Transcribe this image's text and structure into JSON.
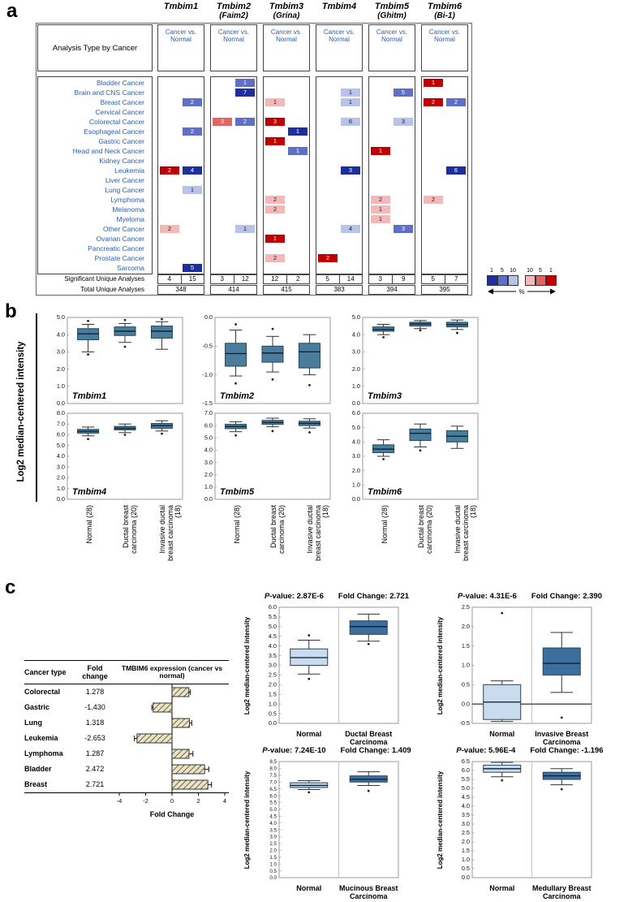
{
  "panels": {
    "a": "a",
    "b": "b",
    "c": "c"
  },
  "panel_b": {
    "ylabel": "Log2 median-centered intensity"
  },
  "panel_c": {
    "table": {
      "col1": "Cancer type",
      "col2": "Fold change"
    }
  },
  "chart_data": [
    {
      "id": "oncomine_summary",
      "type": "heatmap",
      "row_header": "Analysis Type by Cancer",
      "subheader": "Cancer vs. Normal",
      "genes": [
        {
          "name": "Tmbim1",
          "alias": ""
        },
        {
          "name": "Tmbim2",
          "alias": "(Faim2)"
        },
        {
          "name": "Tmbim3",
          "alias": "(Grina)"
        },
        {
          "name": "Tmbim4",
          "alias": ""
        },
        {
          "name": "Tmbim5",
          "alias": "(Ghitm)"
        },
        {
          "name": "Tmbim6",
          "alias": "(Bi-1)"
        }
      ],
      "rows": [
        "Bladder Cancer",
        "Brain and CNS Cancer",
        "Breast Cancer",
        "Cervical Cancer",
        "Colorectal Cancer",
        "Esophageal Cancer",
        "Gastric Cancer",
        "Head and Neck Cancer",
        "Kidney Cancer",
        "Leukemia",
        "Liver Cancer",
        "Lung Cancer",
        "Lymphoma",
        "Melanoma",
        "Myeloma",
        "Other Cancer",
        "Ovarian Cancer",
        "Pancreatic Cancer",
        "Prostate Cancer",
        "Sarcoma"
      ],
      "shades": {
        "red1": "#c00000",
        "red5": "#e06666",
        "red10": "#f4b8b8",
        "blue10": "#b9c2e8",
        "blue5": "#5f6fc4",
        "blue1": "#1e2f9c"
      },
      "cells": [
        {
          "row": 0,
          "gene": 1,
          "side": "R",
          "value": 1,
          "shade": "blue5"
        },
        {
          "row": 0,
          "gene": 5,
          "side": "L",
          "value": 1,
          "shade": "red1"
        },
        {
          "row": 1,
          "gene": 1,
          "side": "R",
          "value": 7,
          "shade": "blue1"
        },
        {
          "row": 1,
          "gene": 3,
          "side": "R",
          "value": 1,
          "shade": "blue10"
        },
        {
          "row": 1,
          "gene": 4,
          "side": "R",
          "value": 5,
          "shade": "blue5"
        },
        {
          "row": 2,
          "gene": 0,
          "side": "R",
          "value": 2,
          "shade": "blue5"
        },
        {
          "row": 2,
          "gene": 2,
          "side": "L",
          "value": 1,
          "shade": "red10"
        },
        {
          "row": 2,
          "gene": 3,
          "side": "R",
          "value": 1,
          "shade": "blue10"
        },
        {
          "row": 2,
          "gene": 5,
          "side": "L",
          "value": 2,
          "shade": "red1"
        },
        {
          "row": 2,
          "gene": 5,
          "side": "R",
          "value": 2,
          "shade": "blue5"
        },
        {
          "row": 4,
          "gene": 1,
          "side": "L",
          "value": 3,
          "shade": "red5"
        },
        {
          "row": 4,
          "gene": 1,
          "side": "R",
          "value": 2,
          "shade": "blue5"
        },
        {
          "row": 4,
          "gene": 2,
          "side": "L",
          "value": 3,
          "shade": "red1"
        },
        {
          "row": 4,
          "gene": 3,
          "side": "R",
          "value": 6,
          "shade": "blue10"
        },
        {
          "row": 4,
          "gene": 4,
          "side": "R",
          "value": 3,
          "shade": "blue10"
        },
        {
          "row": 5,
          "gene": 0,
          "side": "R",
          "value": 2,
          "shade": "blue5"
        },
        {
          "row": 5,
          "gene": 2,
          "side": "R",
          "value": 1,
          "shade": "blue1"
        },
        {
          "row": 6,
          "gene": 2,
          "side": "L",
          "value": 1,
          "shade": "red1"
        },
        {
          "row": 7,
          "gene": 2,
          "side": "R",
          "value": 1,
          "shade": "blue5"
        },
        {
          "row": 7,
          "gene": 4,
          "side": "L",
          "value": 1,
          "shade": "red1"
        },
        {
          "row": 9,
          "gene": 0,
          "side": "L",
          "value": 2,
          "shade": "red1"
        },
        {
          "row": 9,
          "gene": 0,
          "side": "R",
          "value": 4,
          "shade": "blue1"
        },
        {
          "row": 9,
          "gene": 3,
          "side": "R",
          "value": 3,
          "shade": "blue1"
        },
        {
          "row": 9,
          "gene": 5,
          "side": "R",
          "value": 6,
          "shade": "blue1"
        },
        {
          "row": 11,
          "gene": 0,
          "side": "R",
          "value": 1,
          "shade": "blue10"
        },
        {
          "row": 12,
          "gene": 2,
          "side": "L",
          "value": 2,
          "shade": "red10"
        },
        {
          "row": 12,
          "gene": 4,
          "side": "L",
          "value": 2,
          "shade": "red10"
        },
        {
          "row": 12,
          "gene": 5,
          "side": "L",
          "value": 2,
          "shade": "red10"
        },
        {
          "row": 13,
          "gene": 2,
          "side": "L",
          "value": 2,
          "shade": "red10"
        },
        {
          "row": 13,
          "gene": 4,
          "side": "L",
          "value": 1,
          "shade": "red10"
        },
        {
          "row": 14,
          "gene": 4,
          "side": "L",
          "value": 1,
          "shade": "red10"
        },
        {
          "row": 15,
          "gene": 0,
          "side": "L",
          "value": 2,
          "shade": "red10"
        },
        {
          "row": 15,
          "gene": 1,
          "side": "R",
          "value": 1,
          "shade": "blue10"
        },
        {
          "row": 15,
          "gene": 3,
          "side": "R",
          "value": 4,
          "shade": "blue10"
        },
        {
          "row": 15,
          "gene": 4,
          "side": "R",
          "value": 3,
          "shade": "blue5"
        },
        {
          "row": 16,
          "gene": 2,
          "side": "L",
          "value": 1,
          "shade": "red1"
        },
        {
          "row": 18,
          "gene": 2,
          "side": "L",
          "value": 2,
          "shade": "red10"
        },
        {
          "row": 18,
          "gene": 3,
          "side": "L",
          "value": 2,
          "shade": "red1"
        },
        {
          "row": 19,
          "gene": 0,
          "side": "R",
          "value": 5,
          "shade": "blue1"
        }
      ],
      "significant_label": "Significant Unique Analyses",
      "significant": [
        [
          4,
          15
        ],
        [
          3,
          12
        ],
        [
          12,
          2
        ],
        [
          5,
          14
        ],
        [
          3,
          9
        ],
        [
          5,
          7
        ]
      ],
      "total_label": "Total Unique Analyses",
      "totals": [
        348,
        414,
        415,
        383,
        394,
        395
      ],
      "legend": {
        "blue_labels": [
          "1",
          "5",
          "10"
        ],
        "red_labels": [
          "10",
          "5",
          "1"
        ],
        "blue_shades": [
          "blue1",
          "blue5",
          "blue10"
        ],
        "red_shades": [
          "red10",
          "red5",
          "red1"
        ],
        "pct": "%"
      }
    },
    {
      "id": "box_tmbim1",
      "type": "box",
      "title": "Tmbim1",
      "ylim": [
        0,
        5
      ],
      "ytick_step": 1,
      "ydecimals": 1,
      "box_color": "#4a7c9b",
      "categories": [
        "Normal (28)",
        "Ductal breast carcinoma (20)",
        "Invasive ductal breast carcinoma (18)"
      ],
      "boxes": [
        {
          "lo": 3.0,
          "q1": 3.7,
          "med": 4.05,
          "q3": 4.35,
          "hi": 4.6,
          "outliers": [
            4.8,
            2.85
          ]
        },
        {
          "lo": 3.55,
          "q1": 3.95,
          "med": 4.2,
          "q3": 4.45,
          "hi": 4.65,
          "outliers": [
            4.85,
            3.3
          ]
        },
        {
          "lo": 3.15,
          "q1": 3.8,
          "med": 4.2,
          "q3": 4.5,
          "hi": 4.75,
          "outliers": [
            4.9
          ]
        }
      ]
    },
    {
      "id": "box_tmbim2",
      "type": "box",
      "title": "Tmbim2",
      "ylim": [
        -1.5,
        0
      ],
      "ytick_step": 0.5,
      "ydecimals": 1,
      "box_color": "#4a7c9b",
      "categories": [
        "Normal (28)",
        "Ductal breast carcinoma (20)",
        "Invasive ductal breast carcinoma (18)"
      ],
      "boxes": [
        {
          "lo": -1.02,
          "q1": -0.85,
          "med": -0.63,
          "q3": -0.45,
          "hi": -0.22,
          "outliers": [
            -0.12,
            -1.15
          ]
        },
        {
          "lo": -0.95,
          "q1": -0.78,
          "med": -0.62,
          "q3": -0.5,
          "hi": -0.33,
          "outliers": [
            -1.08,
            -0.2
          ]
        },
        {
          "lo": -1.0,
          "q1": -0.88,
          "med": -0.6,
          "q3": -0.45,
          "hi": -0.3,
          "outliers": [
            -1.18
          ]
        }
      ]
    },
    {
      "id": "box_tmbim3",
      "type": "box",
      "title": "Tmbim3",
      "ylim": [
        0,
        5
      ],
      "ytick_step": 1,
      "ydecimals": 1,
      "box_color": "#4a7c9b",
      "categories": [
        "Normal (28)",
        "Ductal breast carcinoma (20)",
        "Invasive ductal breast carcinoma (18)"
      ],
      "boxes": [
        {
          "lo": 4.0,
          "q1": 4.2,
          "med": 4.3,
          "q3": 4.45,
          "hi": 4.6,
          "outliers": [
            3.85
          ]
        },
        {
          "lo": 4.35,
          "q1": 4.5,
          "med": 4.62,
          "q3": 4.72,
          "hi": 4.82,
          "outliers": [
            4.25
          ]
        },
        {
          "lo": 4.3,
          "q1": 4.45,
          "med": 4.58,
          "q3": 4.72,
          "hi": 4.85,
          "outliers": [
            4.1
          ]
        }
      ]
    },
    {
      "id": "box_tmbim4",
      "type": "box",
      "title": "Tmbim4",
      "ylim": [
        0,
        8
      ],
      "ytick_step": 1,
      "ydecimals": 1,
      "box_color": "#4a7c9b",
      "categories": [
        "Normal (28)",
        "Ductal breast carcinoma (20)",
        "Invasive ductal breast carcinoma (18)"
      ],
      "boxes": [
        {
          "lo": 5.9,
          "q1": 6.15,
          "med": 6.32,
          "q3": 6.5,
          "hi": 6.72,
          "outliers": [
            5.6
          ]
        },
        {
          "lo": 6.2,
          "q1": 6.45,
          "med": 6.6,
          "q3": 6.78,
          "hi": 7.0,
          "outliers": [
            6.0
          ]
        },
        {
          "lo": 6.35,
          "q1": 6.6,
          "med": 6.85,
          "q3": 7.05,
          "hi": 7.3,
          "outliers": [
            6.1
          ]
        }
      ]
    },
    {
      "id": "box_tmbim5",
      "type": "box",
      "title": "Tmbim5",
      "ylim": [
        0,
        7
      ],
      "ytick_step": 1,
      "ydecimals": 1,
      "box_color": "#4a7c9b",
      "categories": [
        "Normal (28)",
        "Ductal breast carcinoma (20)",
        "Invasive ductal breast carcinoma (18)"
      ],
      "boxes": [
        {
          "lo": 5.5,
          "q1": 5.75,
          "med": 5.92,
          "q3": 6.1,
          "hi": 6.3,
          "outliers": [
            5.2
          ]
        },
        {
          "lo": 5.9,
          "q1": 6.1,
          "med": 6.25,
          "q3": 6.42,
          "hi": 6.6,
          "outliers": [
            5.55
          ]
        },
        {
          "lo": 5.8,
          "q1": 6.0,
          "med": 6.18,
          "q3": 6.35,
          "hi": 6.55,
          "outliers": [
            5.45
          ]
        }
      ]
    },
    {
      "id": "box_tmbim6",
      "type": "box",
      "title": "Tmbim6",
      "ylim": [
        0,
        6
      ],
      "ytick_step": 1,
      "ydecimals": 1,
      "box_color": "#4a7c9b",
      "categories": [
        "Normal (28)",
        "Ductal breast carcinoma (20)",
        "Invasive ductal breast carcinoma (18)"
      ],
      "boxes": [
        {
          "lo": 3.0,
          "q1": 3.25,
          "med": 3.5,
          "q3": 3.8,
          "hi": 4.15,
          "outliers": [
            2.8
          ]
        },
        {
          "lo": 3.65,
          "q1": 4.1,
          "med": 4.6,
          "q3": 4.9,
          "hi": 5.25,
          "outliers": [
            3.4
          ]
        },
        {
          "lo": 3.55,
          "q1": 4.0,
          "med": 4.4,
          "q3": 4.78,
          "hi": 5.1,
          "outliers": []
        }
      ]
    },
    {
      "id": "tmbim6_fold",
      "type": "bar",
      "orientation": "horizontal",
      "title": "TMBIM6 expression (cancer vs normal)",
      "categories": [
        "Colorectal",
        "Gastric",
        "Lung",
        "Leukemia",
        "Lymphoma",
        "Bladder",
        "Breast"
      ],
      "values": [
        1.278,
        -1.43,
        1.318,
        -2.653,
        1.287,
        2.472,
        2.721
      ],
      "errors": [
        0.12,
        0.1,
        0.18,
        0.2,
        0.3,
        0.32,
        0.28
      ],
      "xlabel": "Fold Change",
      "xlim": [
        -4,
        4
      ],
      "xticks": [
        -4,
        -2,
        0,
        2,
        4
      ]
    },
    {
      "id": "cmp_ductal",
      "type": "box",
      "p_prefix": "P",
      "p_rest": "-value:",
      "pvalue": "2.87E-6",
      "fold_label": "Fold Change:",
      "fold": "2.721",
      "ylabel": "Log2 median-centered intensity",
      "ylim": [
        0,
        6
      ],
      "ytick_step": 0.5,
      "ydecimals": 1,
      "colors": [
        "#c9dcef",
        "#3c6f9e"
      ],
      "categories": [
        "Normal",
        "Ductal Breast Carcinoma"
      ],
      "boxes": [
        {
          "lo": 2.55,
          "q1": 3.0,
          "med": 3.4,
          "q3": 3.85,
          "hi": 4.3,
          "outliers": [
            2.3,
            4.55
          ]
        },
        {
          "lo": 4.25,
          "q1": 4.6,
          "med": 5.0,
          "q3": 5.3,
          "hi": 5.65,
          "outliers": [
            4.1
          ]
        }
      ]
    },
    {
      "id": "cmp_invasive",
      "type": "box",
      "p_prefix": "P",
      "p_rest": "-value:",
      "pvalue": "4.31E-6",
      "fold_label": "Fold Change:",
      "fold": "2.390",
      "ylabel": "Log2 median-centered intensity",
      "ylim": [
        -0.5,
        2.5
      ],
      "ytick_step": 0.5,
      "ydecimals": 1,
      "zeroline": true,
      "colors": [
        "#c9dcef",
        "#3c6f9e"
      ],
      "categories": [
        "Normal",
        "Invasive Breast Carcinoma"
      ],
      "boxes": [
        {
          "lo": -0.45,
          "q1": -0.4,
          "med": 0.05,
          "q3": 0.5,
          "hi": 0.6,
          "outliers": [
            2.35
          ]
        },
        {
          "lo": 0.3,
          "q1": 0.75,
          "med": 1.05,
          "q3": 1.45,
          "hi": 1.85,
          "outliers": [
            -0.35
          ]
        }
      ]
    },
    {
      "id": "cmp_mucinous",
      "type": "box",
      "p_prefix": "P",
      "p_rest": "-value:",
      "pvalue": "7.24E-10",
      "fold_label": "Fold Change:",
      "fold": "1.409",
      "ylabel": "Log2 median-centered intensity",
      "ylim": [
        0,
        8.5
      ],
      "ytick_step": 0.5,
      "ydecimals": 1,
      "colors": [
        "#c9dcef",
        "#3c6f9e"
      ],
      "categories": [
        "Normal",
        "Mucinous Breast Carcinoma"
      ],
      "boxes": [
        {
          "lo": 6.45,
          "q1": 6.6,
          "med": 6.75,
          "q3": 6.95,
          "hi": 7.1,
          "outliers": [
            6.25
          ]
        },
        {
          "lo": 6.75,
          "q1": 7.0,
          "med": 7.2,
          "q3": 7.45,
          "hi": 7.75,
          "outliers": [
            6.35
          ]
        }
      ]
    },
    {
      "id": "cmp_medullary",
      "type": "box",
      "p_prefix": "P",
      "p_rest": "-value:",
      "pvalue": "5.96E-4",
      "fold_label": "Fold Change:",
      "fold": "-1.196",
      "ylabel": "Log2 median-centered intensity",
      "ylim": [
        0,
        6.5
      ],
      "ytick_step": 0.5,
      "ydecimals": 1,
      "colors": [
        "#c9dcef",
        "#3c6f9e"
      ],
      "categories": [
        "Normal",
        "Medullary Breast Carcinoma"
      ],
      "boxes": [
        {
          "lo": 5.65,
          "q1": 5.9,
          "med": 6.1,
          "q3": 6.3,
          "hi": 6.45,
          "outliers": [
            5.45
          ]
        },
        {
          "lo": 5.2,
          "q1": 5.5,
          "med": 5.7,
          "q3": 5.9,
          "hi": 6.1,
          "outliers": [
            4.95
          ]
        }
      ]
    }
  ]
}
